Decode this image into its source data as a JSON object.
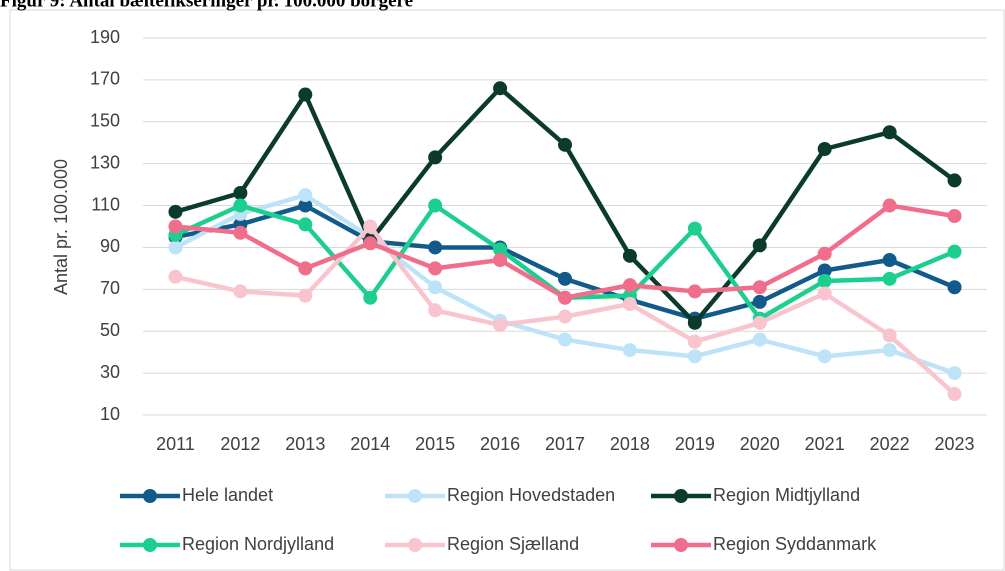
{
  "chart_data": {
    "type": "line",
    "title": "Figur 9: Antal bæltefikseringer pr. 100.000 borgere",
    "y_label": "Antal pr. 100.000",
    "categories": [
      "2011",
      "2012",
      "2013",
      "2014",
      "2015",
      "2016",
      "2017",
      "2018",
      "2019",
      "2020",
      "2021",
      "2022",
      "2023"
    ],
    "series": [
      {
        "name": "Hele landet",
        "color": "#125a8c",
        "values": [
          95,
          101,
          110,
          93,
          90,
          90,
          75,
          65,
          56,
          64,
          79,
          84,
          71
        ]
      },
      {
        "name": "Region Hovedstaden",
        "color": "#bde3f8",
        "values": [
          90,
          106,
          115,
          95,
          71,
          55,
          46,
          41,
          38,
          46,
          38,
          41,
          30
        ]
      },
      {
        "name": "Region Midtjylland",
        "color": "#0b3b2c",
        "values": [
          107,
          116,
          163,
          93,
          133,
          166,
          139,
          86,
          54,
          91,
          137,
          145,
          122
        ]
      },
      {
        "name": "Region Nordjylland",
        "color": "#1dcf8f",
        "values": [
          96,
          110,
          101,
          66,
          110,
          89,
          66,
          67,
          99,
          56,
          74,
          75,
          88
        ]
      },
      {
        "name": "Region Sjælland",
        "color": "#f8c5ce",
        "values": [
          76,
          69,
          67,
          100,
          60,
          53,
          57,
          63,
          45,
          54,
          68,
          48,
          20
        ]
      },
      {
        "name": "Region Syddanmark",
        "color": "#f06d8b",
        "values": [
          100,
          97,
          80,
          92,
          80,
          84,
          66,
          72,
          69,
          71,
          87,
          110,
          105
        ]
      }
    ],
    "ylim": [
      10,
      190
    ],
    "yticks": [
      10,
      30,
      50,
      70,
      90,
      110,
      130,
      150,
      170,
      190
    ],
    "grid": true,
    "legend": "bottom"
  }
}
